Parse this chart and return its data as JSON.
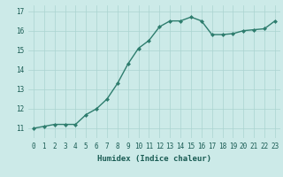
{
  "x": [
    0,
    1,
    2,
    3,
    4,
    5,
    6,
    7,
    8,
    9,
    10,
    11,
    12,
    13,
    14,
    15,
    16,
    17,
    18,
    19,
    20,
    21,
    22,
    23
  ],
  "y": [
    11.0,
    11.1,
    11.2,
    11.2,
    11.2,
    11.7,
    12.0,
    12.5,
    13.3,
    14.3,
    15.1,
    15.5,
    16.2,
    16.5,
    16.5,
    16.7,
    16.5,
    15.8,
    15.8,
    15.85,
    16.0,
    16.05,
    16.1,
    16.5
  ],
  "line_color": "#2e7d6e",
  "marker": "D",
  "markersize": 2.0,
  "bg_color": "#cceae8",
  "grid_color": "#aad4d0",
  "xlabel": "Humidex (Indice chaleur)",
  "ylim": [
    10.5,
    17.3
  ],
  "xlim": [
    -0.5,
    23.5
  ],
  "yticks": [
    11,
    12,
    13,
    14,
    15,
    16,
    17
  ],
  "xticks": [
    0,
    1,
    2,
    3,
    4,
    5,
    6,
    7,
    8,
    9,
    10,
    11,
    12,
    13,
    14,
    15,
    16,
    17,
    18,
    19,
    20,
    21,
    22,
    23
  ],
  "xtick_labels": [
    "0",
    "1",
    "2",
    "3",
    "4",
    "5",
    "6",
    "7",
    "8",
    "9",
    "10",
    "11",
    "12",
    "13",
    "14",
    "15",
    "16",
    "17",
    "18",
    "19",
    "20",
    "21",
    "22",
    "23"
  ],
  "font_color": "#1a5c54",
  "linewidth": 1.0,
  "xlabel_fontsize": 6.5,
  "tick_fontsize": 5.5
}
